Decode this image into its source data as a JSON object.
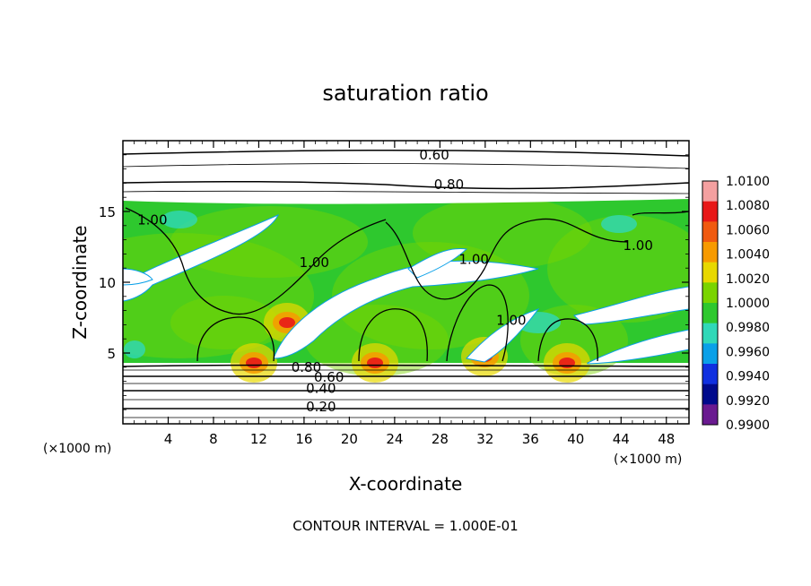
{
  "chart_data": {
    "type": "heatmap",
    "title": "saturation ratio",
    "xlabel": "X-coordinate",
    "ylabel": "Z-coordinate",
    "x_unit": "(×1000 m)",
    "z_unit": "(×1000 m)",
    "xlim": [
      0,
      50
    ],
    "ylim": [
      0,
      20
    ],
    "x_ticks": [
      "4",
      "8",
      "12",
      "16",
      "20",
      "24",
      "28",
      "32",
      "36",
      "40",
      "44",
      "48"
    ],
    "y_ticks": [
      "5",
      "10",
      "15"
    ],
    "footer": "CONTOUR INTERVAL = 1.000E-01",
    "colorbar": {
      "labels": [
        "1.0100",
        "1.0080",
        "1.0060",
        "1.0040",
        "1.0020",
        "1.0000",
        "0.9980",
        "0.9960",
        "0.9940",
        "0.9920",
        "0.9900"
      ],
      "colors": [
        "#f4a0a0",
        "#e81818",
        "#f05a10",
        "#f79a00",
        "#e8d800",
        "#7ad400",
        "#2ec82e",
        "#30d8b8",
        "#0aa0e8",
        "#1030e0",
        "#000a8c",
        "#6a1a90"
      ]
    },
    "contour_labels": [
      {
        "text": "0.60",
        "x": 27.5,
        "z": 19.0
      },
      {
        "text": "0.80",
        "x": 28.8,
        "z": 16.9
      },
      {
        "text": "1.00",
        "x": 2.6,
        "z": 14.4
      },
      {
        "text": "1.00",
        "x": 16.9,
        "z": 11.4
      },
      {
        "text": "1.00",
        "x": 31.0,
        "z": 11.6
      },
      {
        "text": "1.00",
        "x": 45.5,
        "z": 12.6
      },
      {
        "text": "1.00",
        "x": 34.3,
        "z": 7.3
      },
      {
        "text": "0.80",
        "x": 16.2,
        "z": 4.0
      },
      {
        "text": "0.60",
        "x": 18.2,
        "z": 3.3
      },
      {
        "text": "0.40",
        "x": 17.5,
        "z": 2.5
      },
      {
        "text": "0.20",
        "x": 17.5,
        "z": 1.2
      }
    ]
  }
}
